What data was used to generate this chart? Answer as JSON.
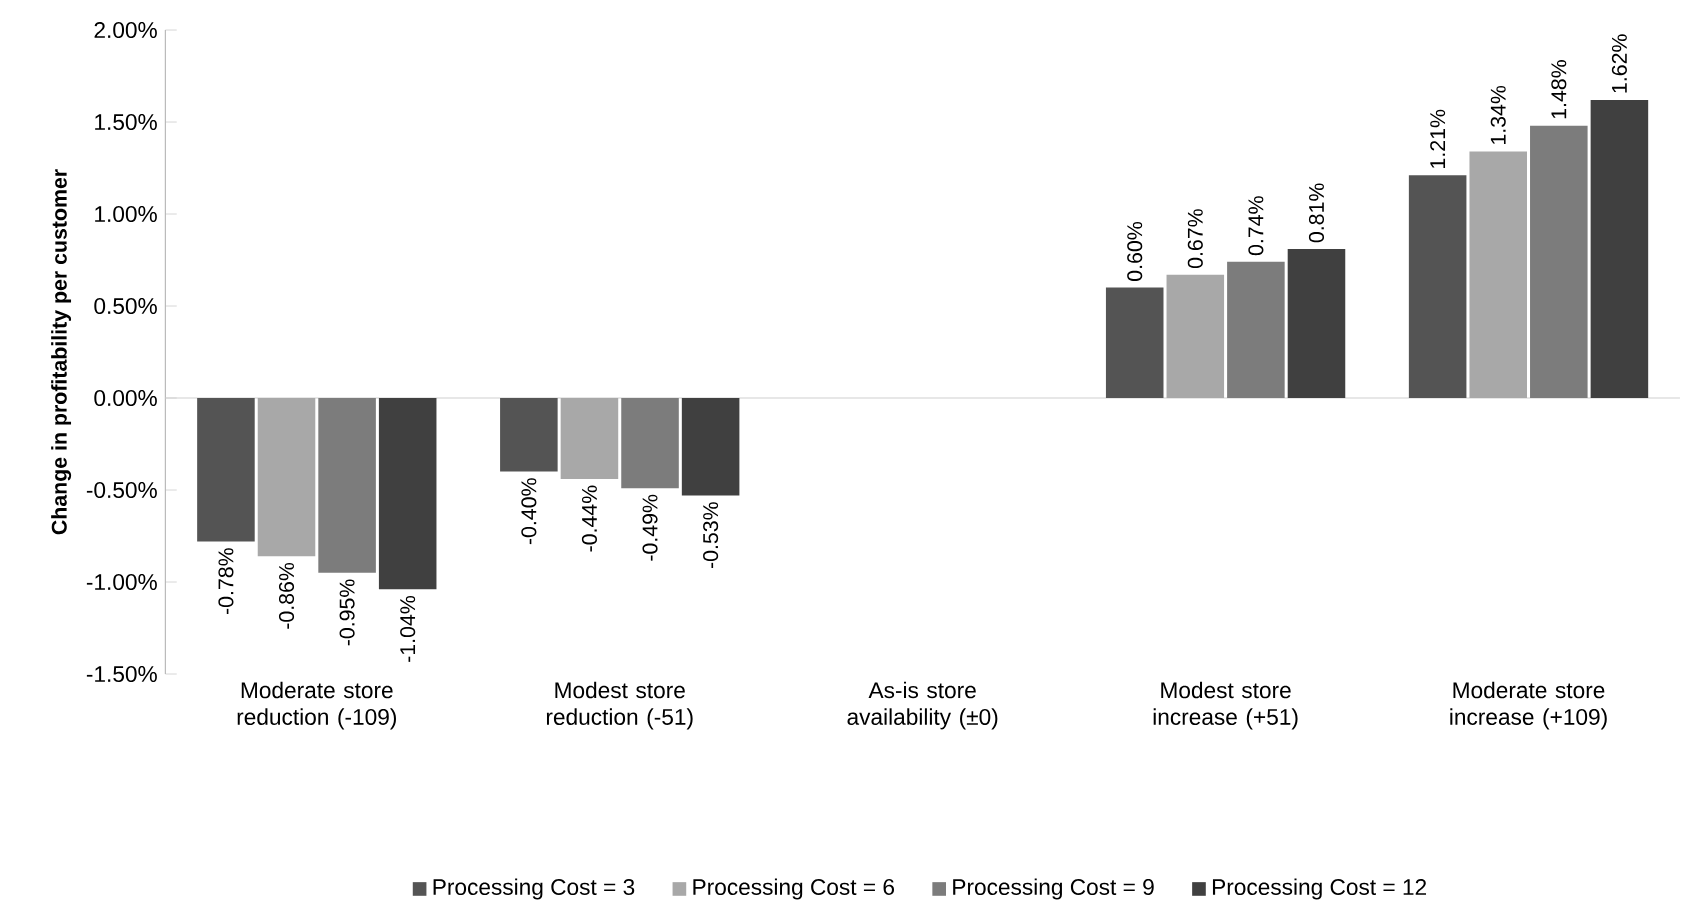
{
  "chart_data": {
    "type": "bar",
    "ylabel": "Change in profitability per customer",
    "categories": [
      "Moderate store reduction (-109)",
      "Modest store reduction (-51)",
      "As-is store availability (±0)",
      "Modest store increase (+51)",
      "Moderate store increase (+109)"
    ],
    "series": [
      {
        "name": "Processing Cost = 3",
        "color": "#545454",
        "values": [
          -0.78,
          -0.4,
          0,
          0.6,
          1.21
        ],
        "value_labels": [
          "-0.78%",
          "-0.40%",
          null,
          "0.60%",
          "1.21%"
        ]
      },
      {
        "name": "Processing Cost = 6",
        "color": "#a8a8a8",
        "values": [
          -0.86,
          -0.44,
          0,
          0.67,
          1.34
        ],
        "value_labels": [
          "-0.86%",
          "-0.44%",
          null,
          "0.67%",
          "1.34%"
        ]
      },
      {
        "name": "Processing Cost = 9",
        "color": "#7c7c7c",
        "values": [
          -0.95,
          -0.49,
          0,
          0.74,
          1.48
        ],
        "value_labels": [
          "-0.95%",
          "-0.49%",
          null,
          "0.74%",
          "1.48%"
        ]
      },
      {
        "name": "Processing Cost = 12",
        "color": "#404040",
        "values": [
          -1.04,
          -0.53,
          0,
          0.81,
          1.62
        ],
        "value_labels": [
          "-1.04%",
          "-0.53%",
          null,
          "0.81%",
          "1.62%"
        ]
      }
    ],
    "ylim": [
      -1.5,
      2.0
    ],
    "yticks": [
      {
        "value": -1.5,
        "label": "-1.50%"
      },
      {
        "value": -1.0,
        "label": "-1.00%"
      },
      {
        "value": -0.5,
        "label": "-0.50%"
      },
      {
        "value": 0,
        "label": "0.00%"
      },
      {
        "value": 0.5,
        "label": "0.50%"
      },
      {
        "value": 1.0,
        "label": "1.00%"
      },
      {
        "value": 1.5,
        "label": "1.50%"
      },
      {
        "value": 2.0,
        "label": "2.00%"
      }
    ],
    "ref_lines": [
      {
        "axis": "y",
        "value": 0,
        "color": "#d0d0d0"
      }
    ],
    "legend": "bottom"
  }
}
